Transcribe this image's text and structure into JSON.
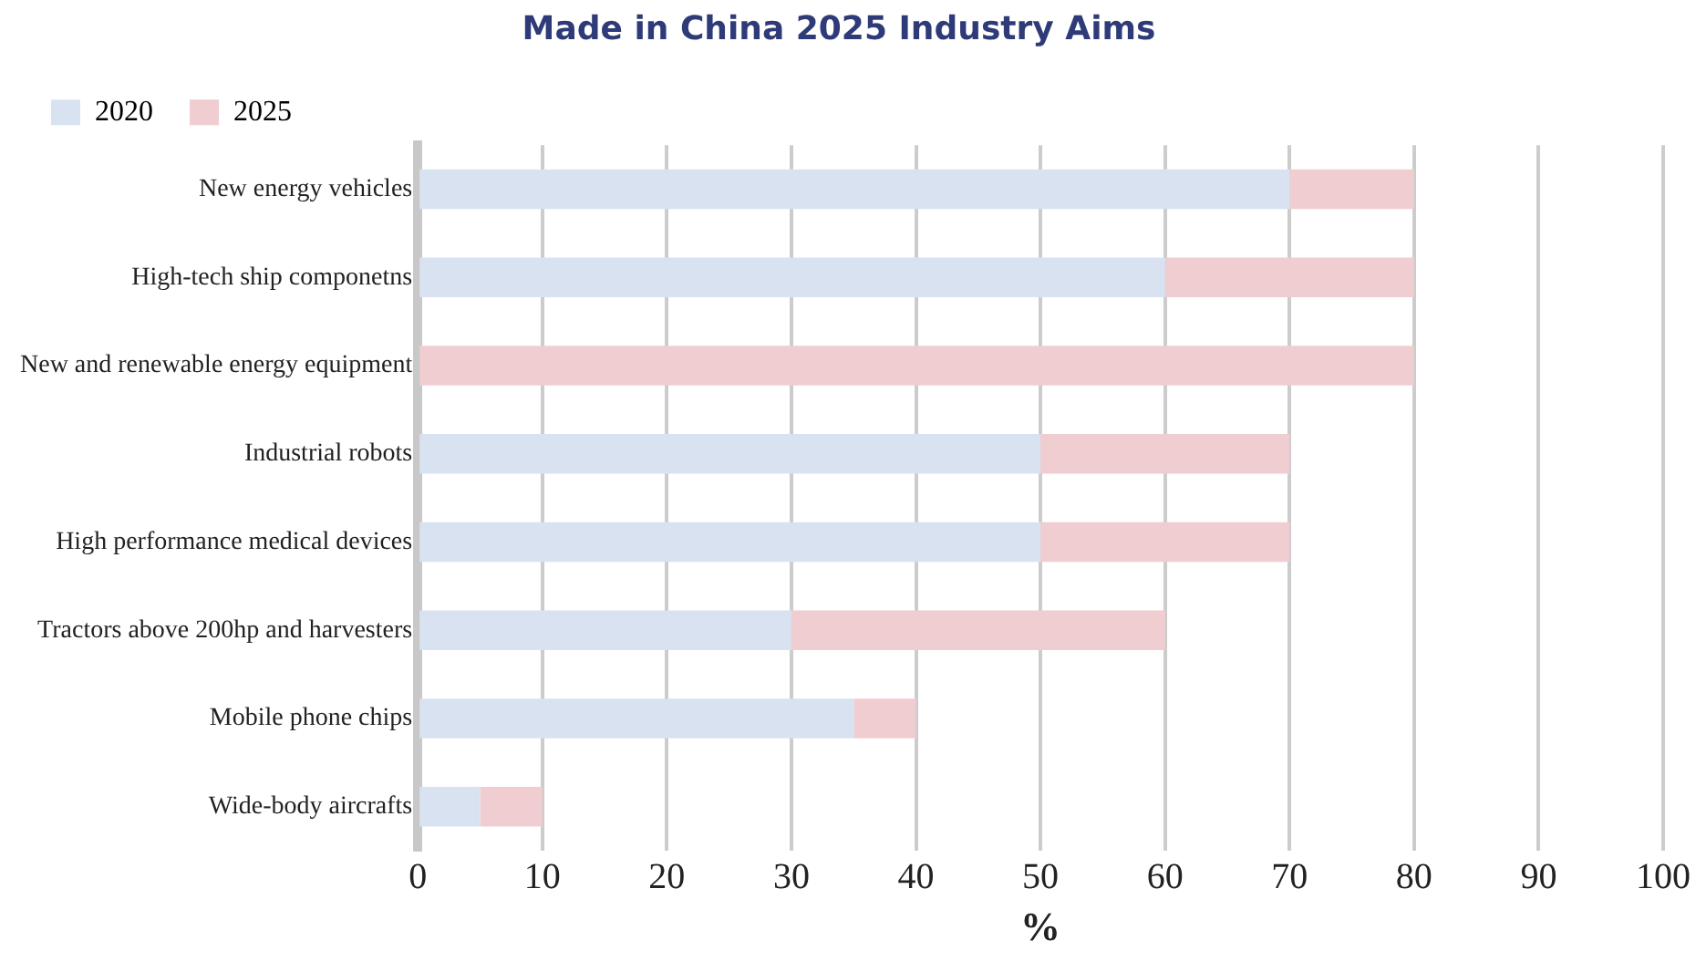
{
  "chart_data": {
    "type": "bar",
    "orientation": "horizontal",
    "stacked": true,
    "title": "Made in China 2025 Industry Aims",
    "xlabel": "%",
    "categories": [
      "New energy vehicles",
      "High-tech ship componetns",
      "New and renewable energy equipment",
      "Industrial robots",
      "High performance medical devices",
      "Tractors above 200hp and harvesters",
      "Mobile phone chips",
      "Wide-body aircrafts"
    ],
    "series": [
      {
        "name": "2020",
        "color": "#d9e2f1",
        "values": [
          70,
          60,
          0,
          50,
          50,
          30,
          35,
          5
        ]
      },
      {
        "name": "2025",
        "color": "#f0cdd0",
        "values": [
          10,
          20,
          80,
          20,
          20,
          30,
          5,
          5
        ]
      }
    ],
    "xlim": [
      0,
      100
    ],
    "xticks": [
      0,
      10,
      20,
      30,
      40,
      50,
      60,
      70,
      80,
      90,
      100
    ],
    "grid": "x",
    "legend": "top left"
  }
}
